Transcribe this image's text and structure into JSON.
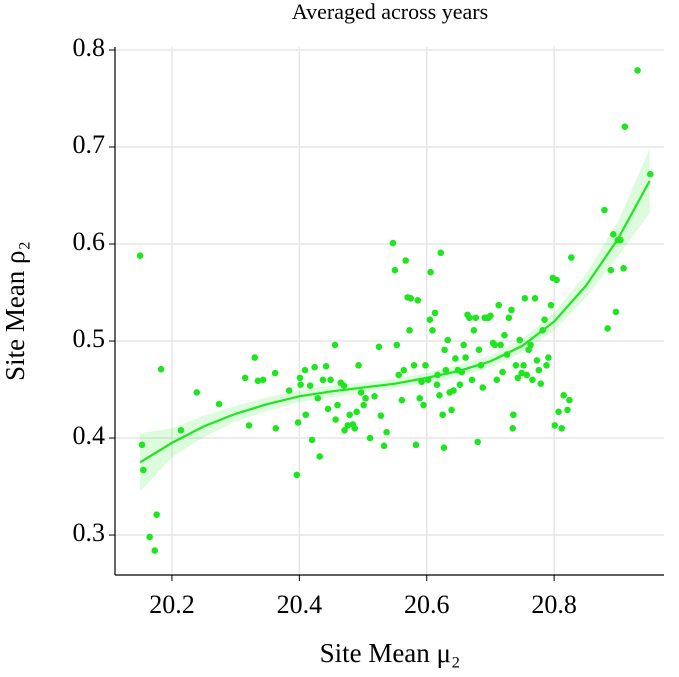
{
  "chart_data": {
    "type": "scatter",
    "title": "Averaged across years",
    "x_label": "Site Mean μ₂",
    "y_label": "Site Mean ρ₂",
    "color": "#1ee61e",
    "xlim": [
      20.1106,
      20.9725
    ],
    "ylim": [
      0.2588,
      0.8031
    ],
    "xticks": [
      20.2,
      20.4,
      20.6,
      20.8
    ],
    "yticks": [
      0.3,
      0.4,
      0.5,
      0.6,
      0.7,
      0.8
    ],
    "grid": true,
    "x": [
      20.15,
      20.153,
      20.155,
      20.165,
      20.173,
      20.176,
      20.183,
      20.214,
      20.239,
      20.274,
      20.315,
      20.321,
      20.33,
      20.335,
      20.343,
      20.362,
      20.363,
      20.384,
      20.396,
      20.398,
      20.401,
      20.402,
      20.409,
      20.41,
      20.417,
      20.42,
      20.424,
      20.429,
      20.432,
      20.437,
      20.442,
      20.445,
      20.449,
      20.456,
      20.457,
      20.46,
      20.465,
      20.47,
      20.471,
      20.476,
      20.479,
      20.484,
      20.487,
      20.49,
      20.493,
      20.497,
      20.501,
      20.504,
      20.511,
      20.518,
      20.525,
      20.528,
      20.533,
      20.537,
      20.547,
      20.55,
      20.553,
      20.556,
      20.561,
      20.564,
      20.567,
      20.57,
      20.573,
      20.575,
      20.58,
      20.583,
      20.586,
      20.589,
      20.592,
      20.595,
      20.598,
      20.602,
      20.605,
      20.606,
      20.609,
      20.613,
      20.616,
      20.617,
      20.62,
      20.622,
      20.625,
      20.627,
      20.628,
      20.63,
      20.633,
      20.636,
      20.639,
      20.642,
      20.645,
      20.649,
      20.652,
      20.655,
      20.658,
      20.661,
      20.664,
      20.667,
      20.671,
      20.674,
      20.677,
      20.68,
      20.682,
      20.685,
      20.688,
      20.691,
      20.694,
      20.697,
      20.7,
      20.704,
      20.707,
      20.71,
      20.713,
      20.716,
      20.719,
      20.722,
      20.726,
      20.729,
      20.733,
      20.735,
      20.736,
      20.74,
      20.743,
      20.746,
      20.749,
      20.752,
      20.754,
      20.757,
      20.76,
      20.763,
      20.766,
      20.77,
      20.773,
      20.776,
      20.779,
      20.782,
      20.785,
      20.788,
      20.791,
      20.795,
      20.798,
      20.801,
      20.804,
      20.807,
      20.812,
      20.815,
      20.821,
      20.824,
      20.827,
      20.879,
      20.884,
      20.889,
      20.893,
      20.897,
      20.9,
      20.904,
      20.909,
      20.911,
      20.931,
      20.951
    ],
    "values": [
      0.588,
      0.393,
      0.367,
      0.298,
      0.284,
      0.321,
      0.471,
      0.408,
      0.447,
      0.435,
      0.462,
      0.413,
      0.483,
      0.459,
      0.46,
      0.467,
      0.41,
      0.449,
      0.362,
      0.416,
      0.462,
      0.455,
      0.47,
      0.424,
      0.454,
      0.398,
      0.473,
      0.441,
      0.381,
      0.46,
      0.474,
      0.43,
      0.46,
      0.496,
      0.419,
      0.434,
      0.457,
      0.454,
      0.408,
      0.413,
      0.424,
      0.414,
      0.41,
      0.427,
      0.475,
      0.447,
      0.434,
      0.441,
      0.4,
      0.443,
      0.494,
      0.423,
      0.392,
      0.406,
      0.601,
      0.573,
      0.496,
      0.465,
      0.439,
      0.47,
      0.583,
      0.545,
      0.511,
      0.544,
      0.475,
      0.393,
      0.542,
      0.441,
      0.458,
      0.434,
      0.475,
      0.46,
      0.522,
      0.571,
      0.511,
      0.529,
      0.455,
      0.465,
      0.444,
      0.591,
      0.424,
      0.39,
      0.491,
      0.47,
      0.501,
      0.447,
      0.429,
      0.449,
      0.482,
      0.47,
      0.455,
      0.468,
      0.496,
      0.483,
      0.527,
      0.524,
      0.46,
      0.511,
      0.524,
      0.396,
      0.491,
      0.475,
      0.452,
      0.524,
      0.524,
      0.524,
      0.526,
      0.498,
      0.496,
      0.46,
      0.537,
      0.496,
      0.468,
      0.506,
      0.486,
      0.524,
      0.532,
      0.41,
      0.424,
      0.475,
      0.462,
      0.501,
      0.467,
      0.475,
      0.544,
      0.465,
      0.491,
      0.496,
      0.46,
      0.544,
      0.48,
      0.47,
      0.456,
      0.511,
      0.522,
      0.475,
      0.483,
      0.537,
      0.565,
      0.413,
      0.563,
      0.427,
      0.41,
      0.444,
      0.429,
      0.439,
      0.586,
      0.635,
      0.513,
      0.573,
      0.61,
      0.53,
      0.604,
      0.604,
      0.575,
      0.721,
      0.779,
      0.672
    ],
    "smooth": {
      "color": "#1ee61e",
      "x": [
        20.15,
        20.2,
        20.25,
        20.3,
        20.35,
        20.4,
        20.45,
        20.5,
        20.55,
        20.6,
        20.65,
        20.7,
        20.75,
        20.8,
        20.85,
        20.9,
        20.95
      ],
      "values": [
        0.375,
        0.395,
        0.412,
        0.425,
        0.435,
        0.443,
        0.448,
        0.452,
        0.456,
        0.462,
        0.469,
        0.479,
        0.495,
        0.52,
        0.557,
        0.605,
        0.665
      ],
      "lower": [
        0.345,
        0.38,
        0.401,
        0.417,
        0.428,
        0.437,
        0.442,
        0.447,
        0.451,
        0.457,
        0.463,
        0.473,
        0.488,
        0.511,
        0.545,
        0.587,
        0.632
      ],
      "upper": [
        0.405,
        0.41,
        0.423,
        0.433,
        0.442,
        0.449,
        0.454,
        0.457,
        0.461,
        0.467,
        0.475,
        0.485,
        0.502,
        0.529,
        0.569,
        0.623,
        0.698
      ]
    }
  }
}
